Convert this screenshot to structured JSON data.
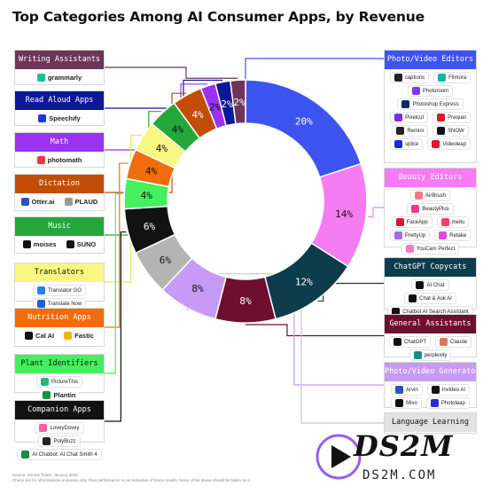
{
  "title": "Top Categories Among AI Consumer Apps, by Revenue",
  "footnote": {
    "line1": "Source: Sensor Tower, January 2025",
    "line2": "Charts are for informational purposes only. Past performance is not indicative of future results. None of the above should be taken as a"
  },
  "watermark": {
    "big": "DS2M",
    "small": "DS2M.COM"
  },
  "chart_data": {
    "type": "pie",
    "subtype": "donut",
    "unit": "%",
    "slices": [
      {
        "label": "Photo/Video Editors",
        "value": 20,
        "display": "20%",
        "color": "#3e54f0"
      },
      {
        "label": "Beauty Editors",
        "value": 14,
        "display": "14%",
        "color": "#f57cf2"
      },
      {
        "label": "ChatGPT Copycats",
        "value": 12,
        "display": "12%",
        "color": "#0d3d4c"
      },
      {
        "label": "General Assistants",
        "value": 8,
        "display": "8%",
        "color": "#6e0f2f"
      },
      {
        "label": "Photo/Video Generators",
        "value": 8,
        "display": "8%",
        "color": "#c79af6"
      },
      {
        "label": "Language Learning",
        "value": 6,
        "display": "6%",
        "color": "#b4b4b4"
      },
      {
        "label": "Companion Apps",
        "value": 6,
        "display": "6%",
        "color": "#121212"
      },
      {
        "label": "Plant Identifiers",
        "value": 4,
        "display": "4%",
        "color": "#44f05c"
      },
      {
        "label": "Nutrition Apps",
        "value": 4,
        "display": "4%",
        "color": "#f26c0d"
      },
      {
        "label": "Translators",
        "value": 4,
        "display": "4%",
        "color": "#f7f781"
      },
      {
        "label": "Music",
        "value": 4,
        "display": "4%",
        "color": "#24a83b"
      },
      {
        "label": "Dictation",
        "value": 4,
        "display": "4%",
        "color": "#c24d07"
      },
      {
        "label": "Math",
        "value": 2,
        "display": "2%",
        "color": "#9b31f2"
      },
      {
        "label": "Read Aloud Apps",
        "value": 2,
        "display": "2%",
        "color": "#0d1896"
      },
      {
        "label": "Writing Assistants",
        "value": 2,
        "display": "2%",
        "color": "#6e3559"
      }
    ]
  },
  "categories_left": [
    {
      "name": "Writing Assistants",
      "color": "#6e3559",
      "apps": [
        {
          "name": "grammarly",
          "icon": "#15c39a"
        }
      ]
    },
    {
      "name": "Read Aloud Apps",
      "color": "#0d1896",
      "apps": [
        {
          "name": "Speechify",
          "icon": "#1a3ae0"
        }
      ]
    },
    {
      "name": "Math",
      "color": "#9b31f2",
      "apps": [
        {
          "name": "photomath",
          "icon": "#e53a3a"
        }
      ]
    },
    {
      "name": "Dictation",
      "color": "#c24d07",
      "apps": [
        {
          "name": "Otter.ai",
          "icon": "#2a52be"
        },
        {
          "name": "PLAUD",
          "icon": "#999999"
        }
      ]
    },
    {
      "name": "Music",
      "color": "#24a83b",
      "apps": [
        {
          "name": "moises",
          "icon": "#111111"
        },
        {
          "name": "SUNO",
          "icon": "#111111"
        }
      ]
    },
    {
      "name": "Translators",
      "color": "#f7f781",
      "apps": [
        {
          "name": "Translator GO",
          "icon": "#2d7cf0"
        },
        {
          "name": "Translate Now",
          "icon": "#1f5fd6"
        }
      ]
    },
    {
      "name": "Nutrition Apps",
      "color": "#f26c0d",
      "apps": [
        {
          "name": "Cal AI",
          "icon": "#111111"
        },
        {
          "name": "Fastic",
          "icon": "#f2b705"
        }
      ]
    },
    {
      "name": "Plant Identifiers",
      "color": "#44f05c",
      "apps": [
        {
          "name": "PictureThis",
          "icon": "#2bb673"
        },
        {
          "name": "Plantin",
          "icon": "#1a8f4c"
        }
      ]
    },
    {
      "name": "Companion Apps",
      "color": "#121212",
      "apps": [
        {
          "name": "LoveyDovey",
          "icon": "#ff5f9e"
        },
        {
          "name": "PolyBuzz",
          "icon": "#222222"
        },
        {
          "name": "AI Chatbot: AI Chat Smith 4",
          "icon": "#1b8a4c"
        }
      ]
    }
  ],
  "categories_right": [
    {
      "name": "Photo/Video Editors",
      "color": "#3e54f0",
      "apps": [
        {
          "name": "captions",
          "icon": "#222222"
        },
        {
          "name": "Filmora",
          "icon": "#0fb4a8"
        },
        {
          "name": "Photoroom",
          "icon": "#7a3cf0"
        },
        {
          "name": "Photoshop Express",
          "icon": "#0d2a6b"
        },
        {
          "name": "Pixelcut",
          "icon": "#7b2cf0"
        },
        {
          "name": "Prequel",
          "icon": "#e0142a"
        },
        {
          "name": "Remini",
          "icon": "#222222"
        },
        {
          "name": "SNOW",
          "icon": "#111111"
        },
        {
          "name": "splice",
          "icon": "#1a2bd6"
        },
        {
          "name": "Videoleap",
          "icon": "#e0142a"
        }
      ]
    },
    {
      "name": "Beauty Editors",
      "color": "#f57cf2",
      "apps": [
        {
          "name": "AirBrush",
          "icon": "#f47a8a"
        },
        {
          "name": "BeautyPlus",
          "icon": "#e83b8c"
        },
        {
          "name": "FaceApp",
          "icon": "#e0142a"
        },
        {
          "name": "meitu",
          "icon": "#ff3c6a"
        },
        {
          "name": "PrettyUp",
          "icon": "#a06cf0"
        },
        {
          "name": "Retake",
          "icon": "#e04ad6"
        },
        {
          "name": "YouCam Perfect",
          "icon": "#f07ac0"
        }
      ]
    },
    {
      "name": "ChatGPT Copycats",
      "color": "#0d3d4c",
      "apps": [
        {
          "name": "AI Chat",
          "icon": "#111111"
        },
        {
          "name": "Chat & Ask AI",
          "icon": "#111111"
        },
        {
          "name": "Chatbot AI Search Assistant",
          "icon": "#111111"
        },
        {
          "name": "ChatBox",
          "icon": "#111111"
        },
        {
          "name": "ChatOn AI",
          "icon": "#111111"
        },
        {
          "name": "Nova AI ChatBOT",
          "icon": "#111111"
        }
      ]
    },
    {
      "name": "General Assistants",
      "color": "#6e0f2f",
      "apps": [
        {
          "name": "ChatGPT",
          "icon": "#111111"
        },
        {
          "name": "Claude",
          "icon": "#d97757"
        },
        {
          "name": "perplexity",
          "icon": "#1f8a8a"
        },
        {
          "name": "Quark AI Assistant",
          "icon": "#2a52be"
        }
      ]
    },
    {
      "name": "Photo/Video Generators",
      "color": "#c79af6",
      "apps": [
        {
          "name": "Arvin",
          "icon": "#2a52be"
        },
        {
          "name": "Invideo AI",
          "icon": "#111111"
        },
        {
          "name": "Mivo",
          "icon": "#111111"
        },
        {
          "name": "Photoleap",
          "icon": "#2a2ad6"
        }
      ]
    },
    {
      "name": "Language Learning",
      "color": "#b4b4b4",
      "apps": []
    }
  ]
}
